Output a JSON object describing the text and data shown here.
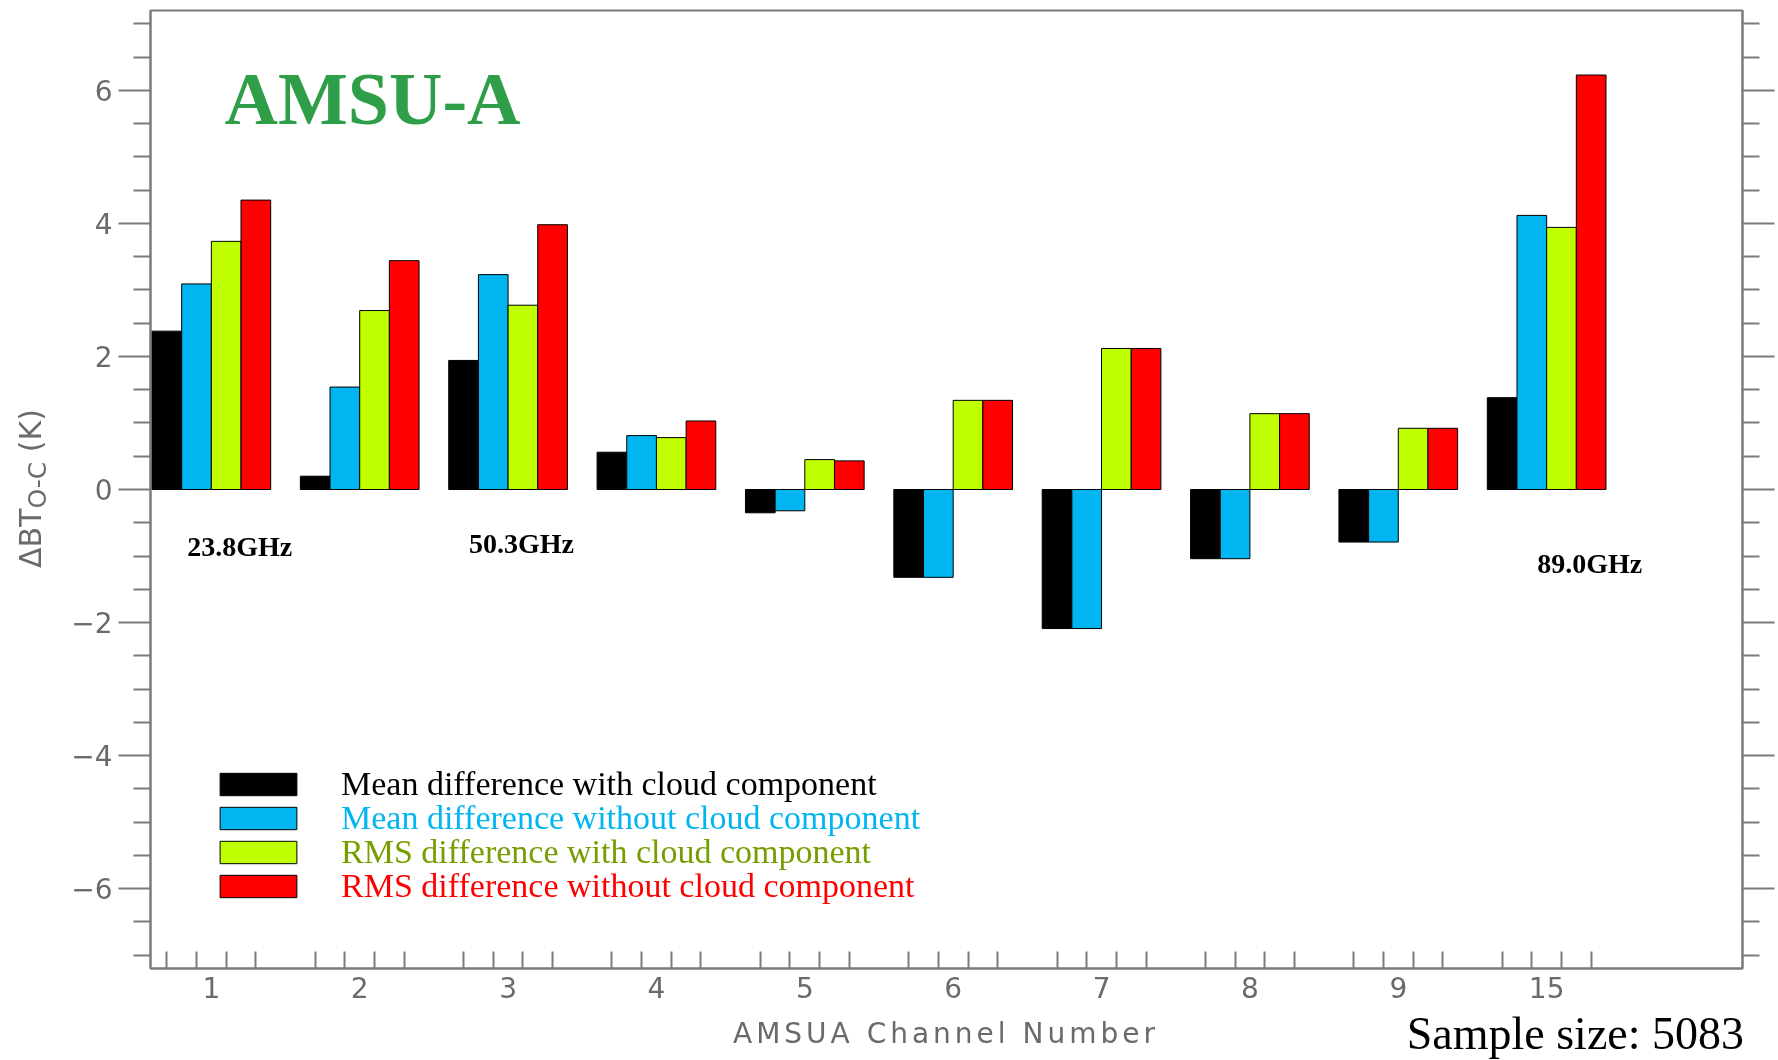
{
  "chart_data": {
    "type": "bar",
    "title": "AMSU-A",
    "xlabel": "AMSUA Channel Number",
    "ylabel": "ΔBT$_{O-C}$ (K)",
    "categories": [
      "1",
      "2",
      "3",
      "4",
      "5",
      "6",
      "7",
      "8",
      "9",
      "15"
    ],
    "series": [
      {
        "name": "Mean difference with cloud component",
        "color": "#000000",
        "values": [
          2.38,
          0.2,
          1.94,
          0.56,
          -0.35,
          -1.32,
          -2.09,
          -1.04,
          -0.79,
          1.38
        ]
      },
      {
        "name": "Mean difference without cloud component",
        "color": "#00b5f0",
        "values": [
          3.09,
          1.54,
          3.23,
          0.81,
          -0.32,
          -1.32,
          -2.09,
          -1.04,
          -0.79,
          4.12
        ]
      },
      {
        "name": "RMS difference with cloud component",
        "color": "#bfff00",
        "values": [
          3.73,
          2.69,
          2.77,
          0.78,
          0.45,
          1.34,
          2.12,
          1.14,
          0.92,
          3.94
        ]
      },
      {
        "name": "RMS difference without cloud component",
        "color": "#ff0000",
        "values": [
          4.35,
          3.44,
          3.98,
          1.03,
          0.43,
          1.34,
          2.12,
          1.14,
          0.92,
          6.23
        ]
      }
    ],
    "ylim": [
      -7.2,
      7.2
    ],
    "yticks": [
      -6,
      -4,
      -2,
      0,
      2,
      4,
      6
    ],
    "grid": false,
    "legend": "bottom left",
    "annotations": [
      "23.8GHz",
      "50.3GHz",
      "89.0GHz",
      "Sample size: 5083"
    ]
  }
}
